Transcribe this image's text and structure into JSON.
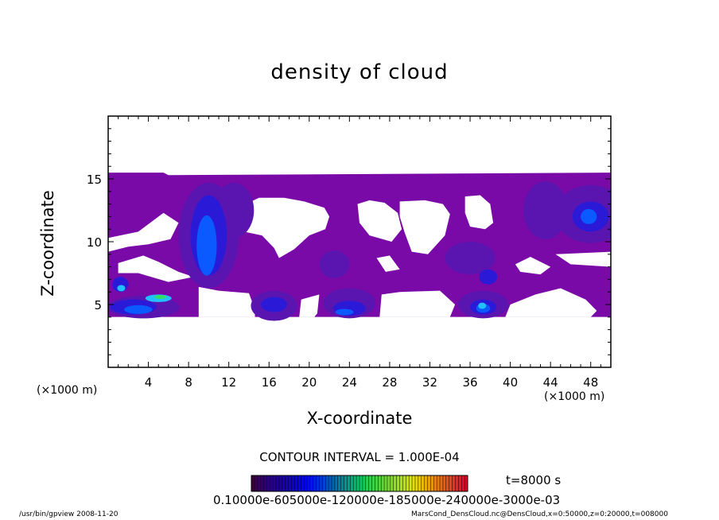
{
  "chart_data": {
    "type": "heatmap",
    "title": "density of cloud",
    "xlabel": "X-coordinate",
    "ylabel": "Z-coordinate",
    "x_unit_left": "(×1000 m)",
    "x_unit_right": "(×1000 m)",
    "xlim": [
      0,
      50
    ],
    "ylim": [
      0,
      20
    ],
    "x_ticks": [
      "4",
      "8",
      "12",
      "16",
      "20",
      "24",
      "28",
      "32",
      "36",
      "40",
      "44",
      "48"
    ],
    "y_ticks": [
      "5",
      "10",
      "15"
    ],
    "contour_interval": "CONTOUR INTERVAL = 1.000E-04",
    "time_label": "t=8000 s",
    "colorbar_labels": "0.10000e-605000e-120000e-185000e-240000e-3000e-03",
    "fill_colors": {
      "background_layer": "#7a0aa8",
      "mid_layer": "#5a14b0",
      "dense_layer": "#2a1ad8",
      "core": "#0a5aff",
      "peak": "#22c0ff",
      "highest": "#30e060"
    },
    "cloud_top_z": 15.5,
    "cloud_base_z": 4
  },
  "footer": {
    "left": "/usr/bin/gpview   2008-11-20",
    "right": "MarsCond_DensCloud.nc@DensCloud,x=0:50000,z=0:20000,t=008000"
  }
}
